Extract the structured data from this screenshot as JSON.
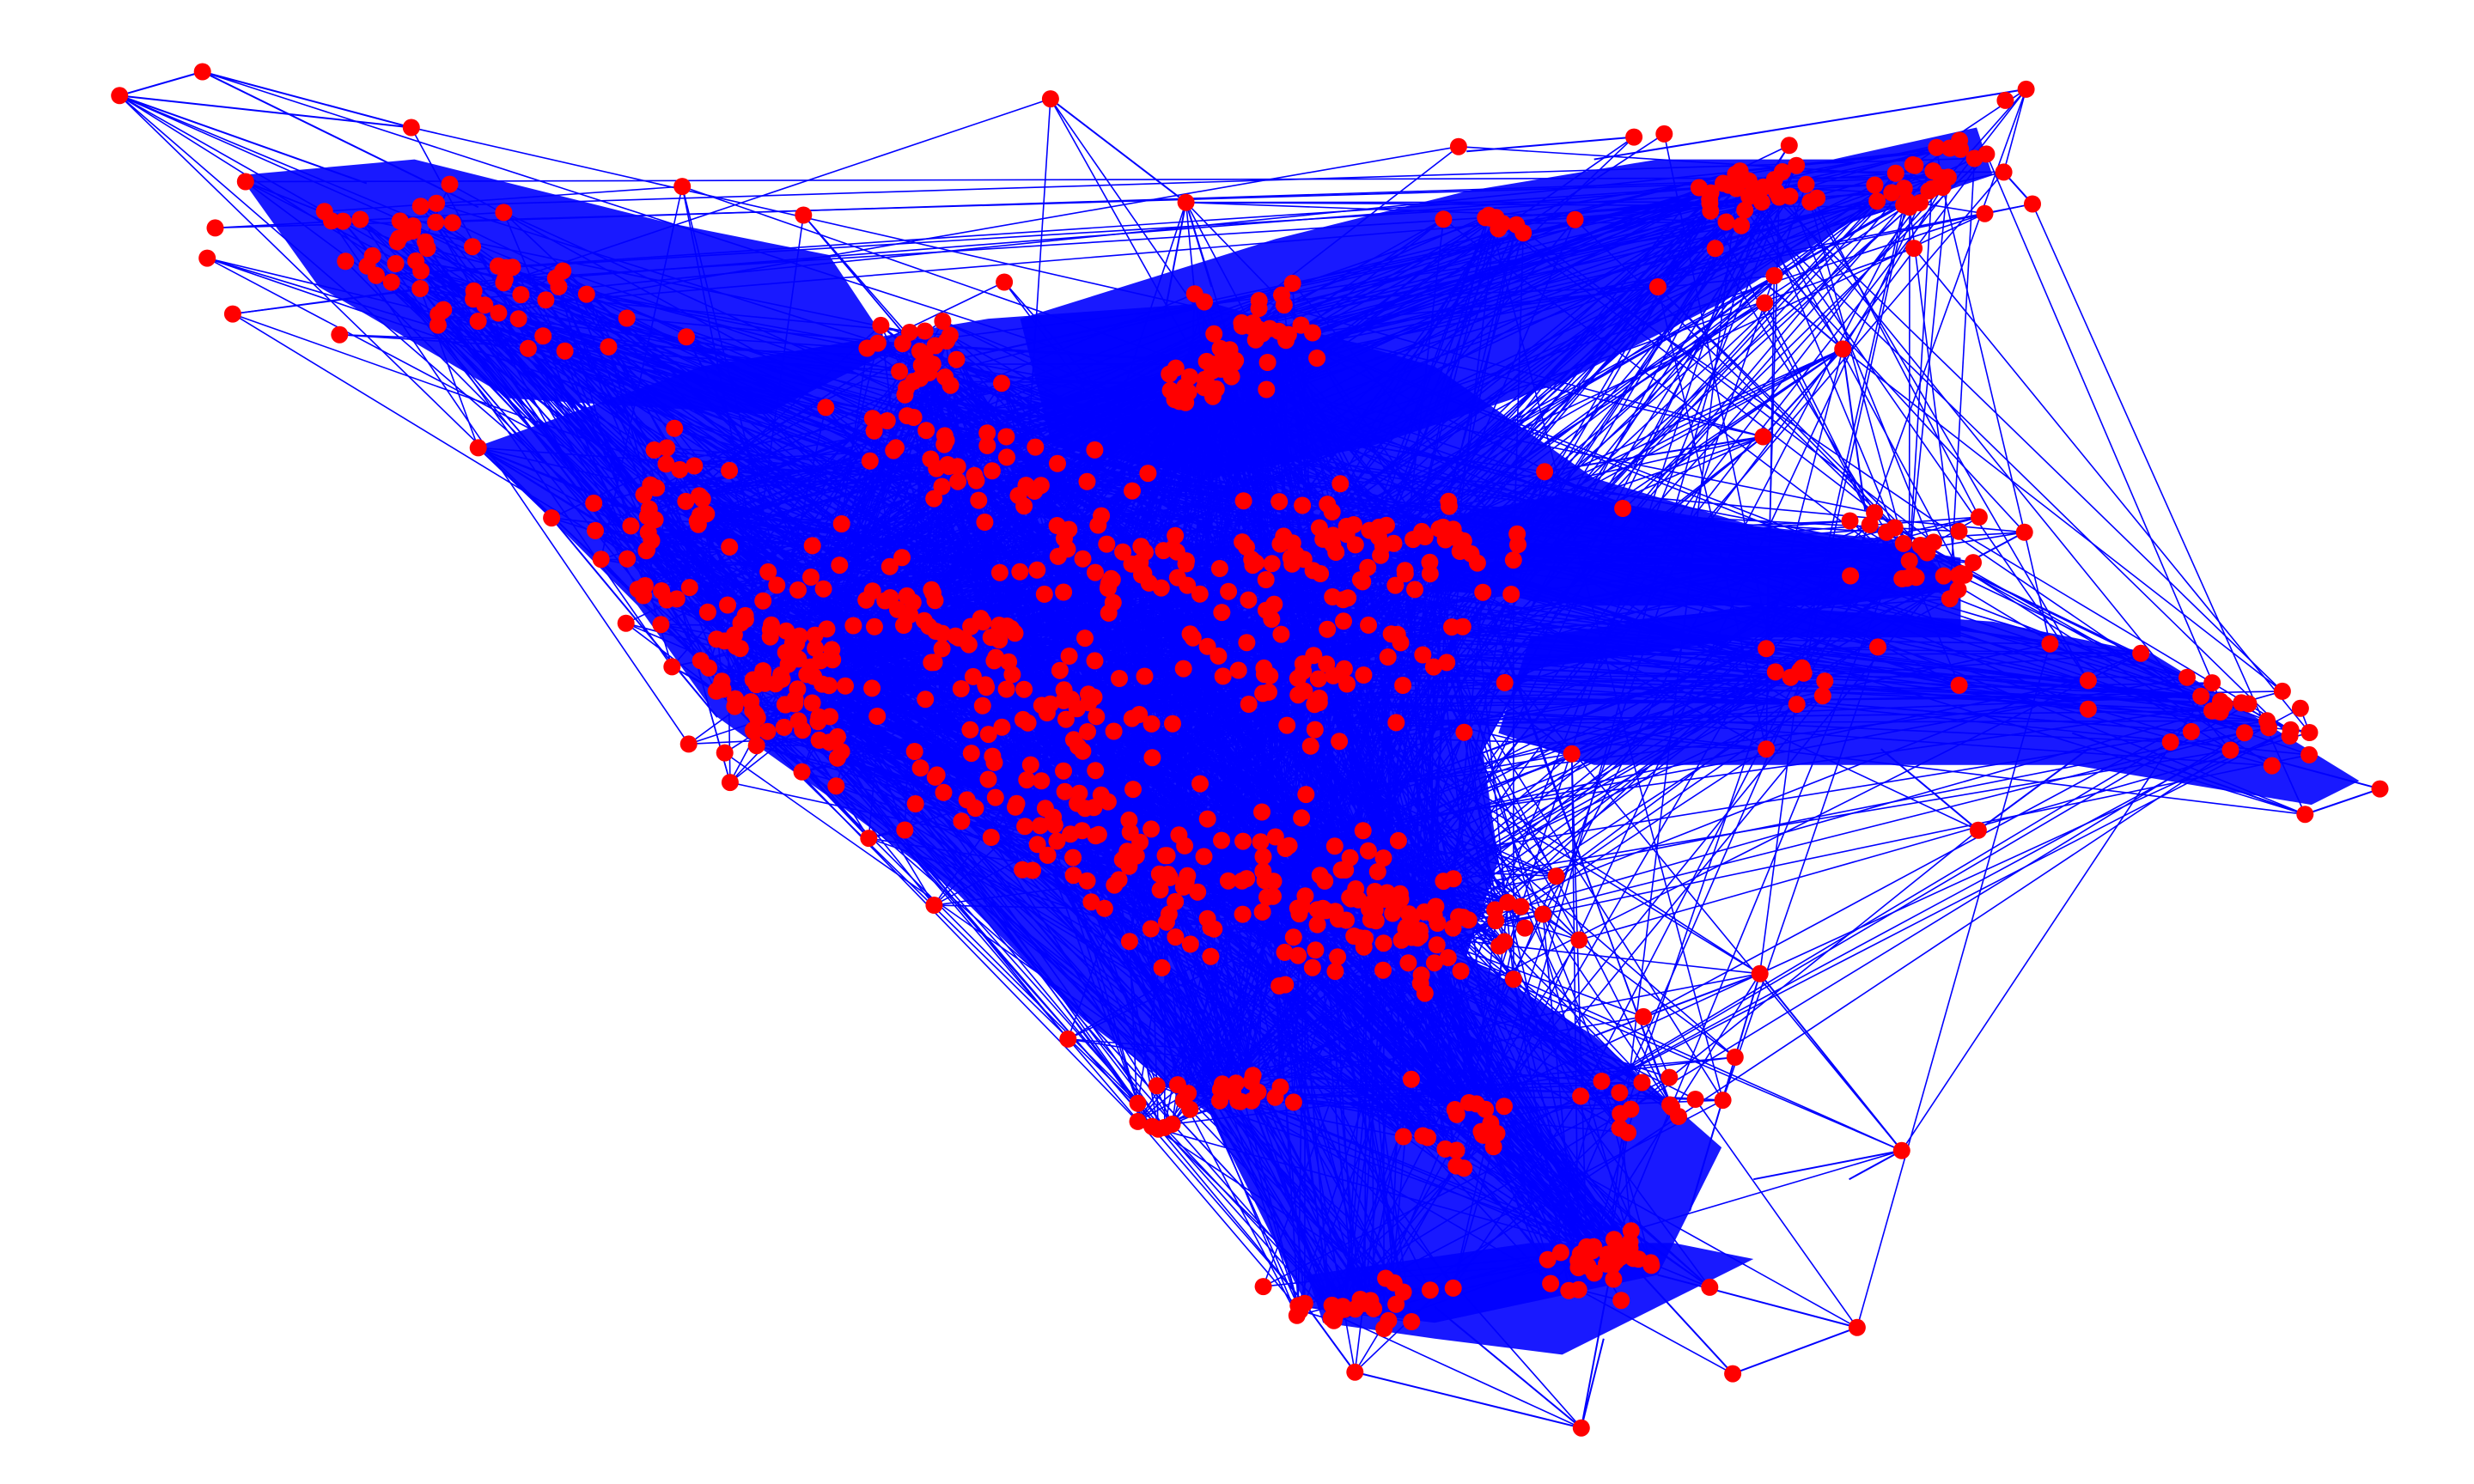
{
  "graph": {
    "type": "network-graph",
    "colors": {
      "background": "#ffffff",
      "edge": "#0000ff",
      "node": "#ff0000"
    },
    "labels_shown": false,
    "axes_shown": false,
    "layout_shape": "dense blue edge mass with red node clusters; branches toward top-left, top-right, right and bottom"
  }
}
